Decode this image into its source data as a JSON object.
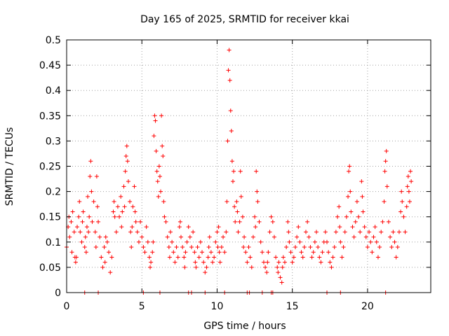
{
  "chart_data": {
    "type": "scatter",
    "title": "Day 165 of 2025, SRMTID for receiver kkai",
    "xlabel": "GPS time / hours",
    "ylabel": "SRMTID / TECUs",
    "xlim": [
      0,
      24.2
    ],
    "ylim": [
      0,
      0.5
    ],
    "xticks": [
      0,
      5,
      10,
      15,
      20
    ],
    "xtick_labels": [
      "0",
      "5",
      "10",
      "15",
      "20"
    ],
    "yticks": [
      0,
      0.05,
      0.1,
      0.15,
      0.2,
      0.25,
      0.3,
      0.35,
      0.4,
      0.45,
      0.5
    ],
    "ytick_labels": [
      "0",
      "0.05",
      "0.1",
      "0.15",
      "0.2",
      "0.25",
      "0.3",
      "0.35",
      "0.4",
      "0.45",
      "0.5"
    ],
    "grid": true,
    "marker": "+",
    "color": "#ff0000",
    "series": [
      {
        "name": "SRMTID",
        "points": [
          [
            0.0,
            0.09
          ],
          [
            0.1,
            0.13
          ],
          [
            0.15,
            0.15
          ],
          [
            0.2,
            0.11
          ],
          [
            0.3,
            0.14
          ],
          [
            0.35,
            0.08
          ],
          [
            0.4,
            0.16
          ],
          [
            0.5,
            0.12
          ],
          [
            0.55,
            0.07
          ],
          [
            0.6,
            0.06
          ],
          [
            0.65,
            0.07
          ],
          [
            0.7,
            0.13
          ],
          [
            0.8,
            0.15
          ],
          [
            0.85,
            0.18
          ],
          [
            0.9,
            0.12
          ],
          [
            1.0,
            0.1
          ],
          [
            1.05,
            0.14
          ],
          [
            1.1,
            0.16
          ],
          [
            1.2,
            0.09
          ],
          [
            1.25,
            0.11
          ],
          [
            1.3,
            0.08
          ],
          [
            1.35,
            0.13
          ],
          [
            1.4,
            0.19
          ],
          [
            1.45,
            0.12
          ],
          [
            1.5,
            0.15
          ],
          [
            1.55,
            0.23
          ],
          [
            1.6,
            0.26
          ],
          [
            1.65,
            0.2
          ],
          [
            1.7,
            0.14
          ],
          [
            1.8,
            0.18
          ],
          [
            1.9,
            0.12
          ],
          [
            1.95,
            0.09
          ],
          [
            2.0,
            0.23
          ],
          [
            2.05,
            0.17
          ],
          [
            2.1,
            0.14
          ],
          [
            2.2,
            0.11
          ],
          [
            2.3,
            0.07
          ],
          [
            2.4,
            0.05
          ],
          [
            2.5,
            0.09
          ],
          [
            2.55,
            0.06
          ],
          [
            2.6,
            0.11
          ],
          [
            2.7,
            0.1
          ],
          [
            2.8,
            0.08
          ],
          [
            2.9,
            0.04
          ],
          [
            3.0,
            0.07
          ],
          [
            3.1,
            0.16
          ],
          [
            3.15,
            0.18
          ],
          [
            3.2,
            0.15
          ],
          [
            3.3,
            0.12
          ],
          [
            3.4,
            0.17
          ],
          [
            3.5,
            0.15
          ],
          [
            3.6,
            0.19
          ],
          [
            3.65,
            0.13
          ],
          [
            3.7,
            0.16
          ],
          [
            3.8,
            0.21
          ],
          [
            3.85,
            0.17
          ],
          [
            3.9,
            0.24
          ],
          [
            3.95,
            0.27
          ],
          [
            4.0,
            0.29
          ],
          [
            4.05,
            0.26
          ],
          [
            4.1,
            0.22
          ],
          [
            4.2,
            0.18
          ],
          [
            4.25,
            0.12
          ],
          [
            4.3,
            0.09
          ],
          [
            4.35,
            0.13
          ],
          [
            4.4,
            0.17
          ],
          [
            4.5,
            0.21
          ],
          [
            4.55,
            0.16
          ],
          [
            4.6,
            0.14
          ],
          [
            4.7,
            0.12
          ],
          [
            4.8,
            0.1
          ],
          [
            4.9,
            0.14
          ],
          [
            5.0,
            0.11
          ],
          [
            5.1,
            0.09
          ],
          [
            5.2,
            0.08
          ],
          [
            5.3,
            0.13
          ],
          [
            5.4,
            0.1
          ],
          [
            5.5,
            0.07
          ],
          [
            5.55,
            0.05
          ],
          [
            5.6,
            0.06
          ],
          [
            5.7,
            0.08
          ],
          [
            5.75,
            0.1
          ],
          [
            5.8,
            0.31
          ],
          [
            5.85,
            0.35
          ],
          [
            5.9,
            0.34
          ],
          [
            5.95,
            0.28
          ],
          [
            6.0,
            0.24
          ],
          [
            6.05,
            0.22
          ],
          [
            6.1,
            0.19
          ],
          [
            6.15,
            0.25
          ],
          [
            6.2,
            0.23
          ],
          [
            6.25,
            0.2
          ],
          [
            6.3,
            0.35
          ],
          [
            6.35,
            0.29
          ],
          [
            6.4,
            0.27
          ],
          [
            6.45,
            0.18
          ],
          [
            6.5,
            0.15
          ],
          [
            6.6,
            0.14
          ],
          [
            6.7,
            0.11
          ],
          [
            6.8,
            0.09
          ],
          [
            6.85,
            0.07
          ],
          [
            6.9,
            0.12
          ],
          [
            7.0,
            0.1
          ],
          [
            7.1,
            0.08
          ],
          [
            7.2,
            0.06
          ],
          [
            7.3,
            0.09
          ],
          [
            7.4,
            0.07
          ],
          [
            7.5,
            0.13
          ],
          [
            7.55,
            0.14
          ],
          [
            7.6,
            0.11
          ],
          [
            7.7,
            0.09
          ],
          [
            7.8,
            0.07
          ],
          [
            7.85,
            0.05
          ],
          [
            7.9,
            0.08
          ],
          [
            8.0,
            0.1
          ],
          [
            8.1,
            0.13
          ],
          [
            8.2,
            0.11
          ],
          [
            8.3,
            0.09
          ],
          [
            8.4,
            0.12
          ],
          [
            8.5,
            0.08
          ],
          [
            8.55,
            0.06
          ],
          [
            8.6,
            0.05
          ],
          [
            8.7,
            0.09
          ],
          [
            8.8,
            0.07
          ],
          [
            8.9,
            0.1
          ],
          [
            9.0,
            0.08
          ],
          [
            9.1,
            0.06
          ],
          [
            9.2,
            0.04
          ],
          [
            9.3,
            0.05
          ],
          [
            9.4,
            0.07
          ],
          [
            9.45,
            0.09
          ],
          [
            9.5,
            0.11
          ],
          [
            9.6,
            0.08
          ],
          [
            9.7,
            0.06
          ],
          [
            9.8,
            0.07
          ],
          [
            9.9,
            0.1
          ],
          [
            10.0,
            0.12
          ],
          [
            10.05,
            0.09
          ],
          [
            10.1,
            0.13
          ],
          [
            10.15,
            0.08
          ],
          [
            10.2,
            0.06
          ],
          [
            10.3,
            0.09
          ],
          [
            10.4,
            0.11
          ],
          [
            10.5,
            0.08
          ],
          [
            10.6,
            0.12
          ],
          [
            10.65,
            0.18
          ],
          [
            10.7,
            0.3
          ],
          [
            10.75,
            0.44
          ],
          [
            10.8,
            0.48
          ],
          [
            10.85,
            0.42
          ],
          [
            10.9,
            0.36
          ],
          [
            10.95,
            0.32
          ],
          [
            11.0,
            0.26
          ],
          [
            11.05,
            0.22
          ],
          [
            11.1,
            0.24
          ],
          [
            11.15,
            0.17
          ],
          [
            11.2,
            0.14
          ],
          [
            11.3,
            0.18
          ],
          [
            11.35,
            0.16
          ],
          [
            11.4,
            0.12
          ],
          [
            11.5,
            0.14
          ],
          [
            11.55,
            0.24
          ],
          [
            11.6,
            0.19
          ],
          [
            11.7,
            0.15
          ],
          [
            11.75,
            0.09
          ],
          [
            11.8,
            0.11
          ],
          [
            11.9,
            0.08
          ],
          [
            12.0,
            0.06
          ],
          [
            12.1,
            0.09
          ],
          [
            12.2,
            0.07
          ],
          [
            12.3,
            0.05
          ],
          [
            12.4,
            0.11
          ],
          [
            12.5,
            0.15
          ],
          [
            12.55,
            0.13
          ],
          [
            12.6,
            0.24
          ],
          [
            12.65,
            0.2
          ],
          [
            12.7,
            0.18
          ],
          [
            12.8,
            0.14
          ],
          [
            12.9,
            0.1
          ],
          [
            13.0,
            0.08
          ],
          [
            13.1,
            0.06
          ],
          [
            13.2,
            0.05
          ],
          [
            13.3,
            0.04
          ],
          [
            13.35,
            0.06
          ],
          [
            13.4,
            0.08
          ],
          [
            13.5,
            0.12
          ],
          [
            13.6,
            0.15
          ],
          [
            13.7,
            0.14
          ],
          [
            13.8,
            0.11
          ],
          [
            13.9,
            0.07
          ],
          [
            14.0,
            0.05
          ],
          [
            14.05,
            0.04
          ],
          [
            14.1,
            0.06
          ],
          [
            14.2,
            0.03
          ],
          [
            14.3,
            0.02
          ],
          [
            14.35,
            0.05
          ],
          [
            14.4,
            0.07
          ],
          [
            14.5,
            0.06
          ],
          [
            14.6,
            0.09
          ],
          [
            14.7,
            0.14
          ],
          [
            14.75,
            0.12
          ],
          [
            14.8,
            0.1
          ],
          [
            14.9,
            0.08
          ],
          [
            15.0,
            0.06
          ],
          [
            15.1,
            0.07
          ],
          [
            15.2,
            0.09
          ],
          [
            15.3,
            0.11
          ],
          [
            15.4,
            0.13
          ],
          [
            15.5,
            0.1
          ],
          [
            15.6,
            0.08
          ],
          [
            15.7,
            0.07
          ],
          [
            15.8,
            0.09
          ],
          [
            15.9,
            0.12
          ],
          [
            16.0,
            0.14
          ],
          [
            16.1,
            0.11
          ],
          [
            16.2,
            0.09
          ],
          [
            16.3,
            0.07
          ],
          [
            16.4,
            0.08
          ],
          [
            16.5,
            0.1
          ],
          [
            16.6,
            0.12
          ],
          [
            16.7,
            0.09
          ],
          [
            16.8,
            0.07
          ],
          [
            16.9,
            0.06
          ],
          [
            17.0,
            0.08
          ],
          [
            17.1,
            0.1
          ],
          [
            17.2,
            0.12
          ],
          [
            17.3,
            0.1
          ],
          [
            17.4,
            0.08
          ],
          [
            17.5,
            0.06
          ],
          [
            17.6,
            0.05
          ],
          [
            17.7,
            0.07
          ],
          [
            17.8,
            0.09
          ],
          [
            17.9,
            0.12
          ],
          [
            18.0,
            0.15
          ],
          [
            18.1,
            0.17
          ],
          [
            18.15,
            0.13
          ],
          [
            18.2,
            0.1
          ],
          [
            18.3,
            0.07
          ],
          [
            18.4,
            0.09
          ],
          [
            18.5,
            0.12
          ],
          [
            18.6,
            0.15
          ],
          [
            18.7,
            0.19
          ],
          [
            18.75,
            0.24
          ],
          [
            18.8,
            0.25
          ],
          [
            18.85,
            0.2
          ],
          [
            18.9,
            0.16
          ],
          [
            19.0,
            0.13
          ],
          [
            19.1,
            0.11
          ],
          [
            19.2,
            0.14
          ],
          [
            19.3,
            0.18
          ],
          [
            19.4,
            0.15
          ],
          [
            19.5,
            0.12
          ],
          [
            19.6,
            0.22
          ],
          [
            19.65,
            0.19
          ],
          [
            19.7,
            0.16
          ],
          [
            19.8,
            0.13
          ],
          [
            19.9,
            0.11
          ],
          [
            20.0,
            0.09
          ],
          [
            20.1,
            0.12
          ],
          [
            20.2,
            0.1
          ],
          [
            20.3,
            0.08
          ],
          [
            20.4,
            0.11
          ],
          [
            20.5,
            0.13
          ],
          [
            20.6,
            0.1
          ],
          [
            20.7,
            0.07
          ],
          [
            20.8,
            0.09
          ],
          [
            20.9,
            0.12
          ],
          [
            21.0,
            0.14
          ],
          [
            21.1,
            0.18
          ],
          [
            21.15,
            0.24
          ],
          [
            21.2,
            0.26
          ],
          [
            21.25,
            0.28
          ],
          [
            21.3,
            0.21
          ],
          [
            21.4,
            0.14
          ],
          [
            21.5,
            0.11
          ],
          [
            21.6,
            0.09
          ],
          [
            21.7,
            0.12
          ],
          [
            21.8,
            0.1
          ],
          [
            21.9,
            0.07
          ],
          [
            22.0,
            0.09
          ],
          [
            22.1,
            0.12
          ],
          [
            22.2,
            0.16
          ],
          [
            22.25,
            0.2
          ],
          [
            22.3,
            0.18
          ],
          [
            22.4,
            0.15
          ],
          [
            22.5,
            0.12
          ],
          [
            22.6,
            0.17
          ],
          [
            22.65,
            0.21
          ],
          [
            22.7,
            0.23
          ],
          [
            22.75,
            0.2
          ],
          [
            22.8,
            0.18
          ],
          [
            22.85,
            0.24
          ],
          [
            22.9,
            0.22
          ],
          [
            1.2,
            0.0
          ],
          [
            2.1,
            0.0
          ],
          [
            5.1,
            0.0
          ],
          [
            6.2,
            0.0
          ],
          [
            8.1,
            0.0
          ],
          [
            8.3,
            0.0
          ],
          [
            9.2,
            0.0
          ],
          [
            10.5,
            0.0
          ],
          [
            12.0,
            0.0
          ],
          [
            12.15,
            0.0
          ],
          [
            13.0,
            0.0
          ],
          [
            13.6,
            0.0
          ],
          [
            13.7,
            0.0
          ],
          [
            17.3,
            0.0
          ],
          [
            18.2,
            0.0
          ],
          [
            21.2,
            0.0
          ]
        ]
      }
    ]
  }
}
